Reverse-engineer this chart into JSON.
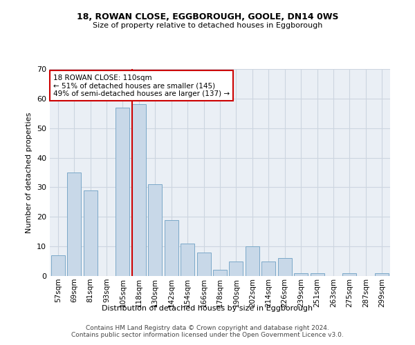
{
  "title1": "18, ROWAN CLOSE, EGGBOROUGH, GOOLE, DN14 0WS",
  "title2": "Size of property relative to detached houses in Eggborough",
  "xlabel": "Distribution of detached houses by size in Eggborough",
  "ylabel": "Number of detached properties",
  "categories": [
    "57sqm",
    "69sqm",
    "81sqm",
    "93sqm",
    "105sqm",
    "118sqm",
    "130sqm",
    "142sqm",
    "154sqm",
    "166sqm",
    "178sqm",
    "190sqm",
    "202sqm",
    "214sqm",
    "226sqm",
    "239sqm",
    "251sqm",
    "263sqm",
    "275sqm",
    "287sqm",
    "299sqm"
  ],
  "values": [
    7,
    35,
    29,
    0,
    57,
    58,
    31,
    19,
    11,
    8,
    2,
    5,
    10,
    5,
    6,
    1,
    1,
    0,
    1,
    0,
    1
  ],
  "bar_color": "#c8d8e8",
  "bar_edge_color": "#7ba8c8",
  "vline_color": "#cc0000",
  "vline_index": 4.57,
  "annotation_text": "18 ROWAN CLOSE: 110sqm\n← 51% of detached houses are smaller (145)\n49% of semi-detached houses are larger (137) →",
  "annotation_box_color": "#ffffff",
  "annotation_box_edge": "#cc0000",
  "ylim": [
    0,
    70
  ],
  "yticks": [
    0,
    10,
    20,
    30,
    40,
    50,
    60,
    70
  ],
  "grid_color": "#ccd5e0",
  "bg_color": "#eaeff5",
  "footer": "Contains HM Land Registry data © Crown copyright and database right 2024.\nContains public sector information licensed under the Open Government Licence v3.0."
}
